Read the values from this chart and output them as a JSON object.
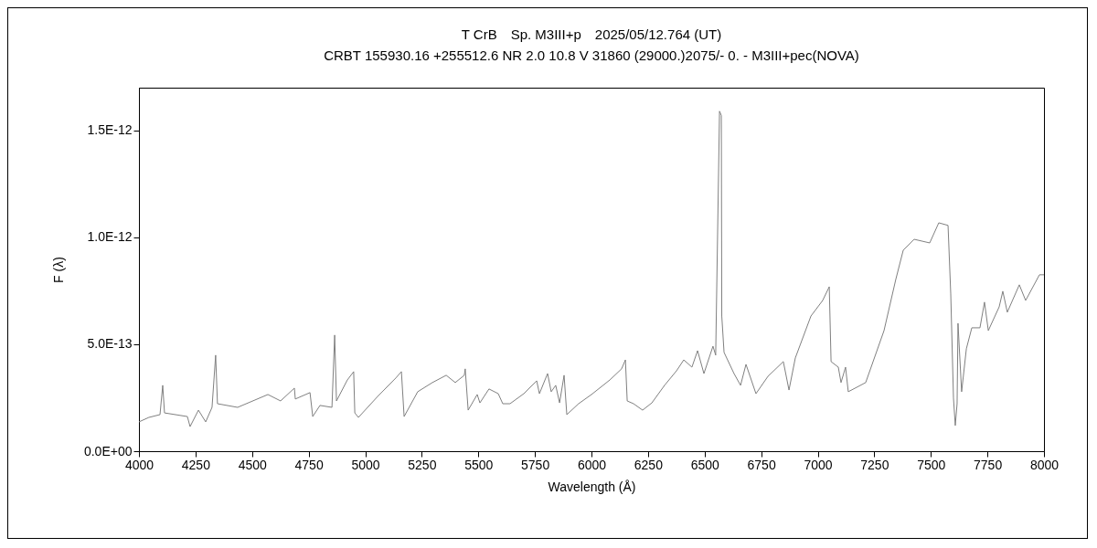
{
  "chart_data": {
    "type": "line",
    "title": "T CrB　Sp. M3III+p　2025/05/12.764 (UT)",
    "subtitle": "CRBT 155930.16 +255512.6 NR 2.0 10.8 V 31860 (29000.)2075/-  0. - M3III+pec(NOVA)",
    "xlabel": "Wavelength (Å)",
    "ylabel": "F (λ)",
    "x": [
      4000,
      4044,
      4093,
      4105,
      4113,
      4214,
      4226,
      4263,
      4295,
      4323,
      4339,
      4347,
      4436,
      4570,
      4626,
      4687,
      4691,
      4756,
      4768,
      4800,
      4853,
      4865,
      4873,
      4921,
      4949,
      4954,
      4970,
      5055,
      5135,
      5160,
      5172,
      5232,
      5297,
      5358,
      5398,
      5438,
      5442,
      5455,
      5495,
      5507,
      5547,
      5588,
      5608,
      5640,
      5701,
      5758,
      5770,
      5806,
      5822,
      5842,
      5859,
      5879,
      5891,
      5943,
      6000,
      6081,
      6133,
      6150,
      6158,
      6186,
      6226,
      6267,
      6323,
      6376,
      6408,
      6444,
      6469,
      6497,
      6537,
      6549,
      6566,
      6574,
      6576,
      6586,
      6630,
      6659,
      6683,
      6727,
      6780,
      6848,
      6873,
      6901,
      6970,
      7022,
      7051,
      7059,
      7091,
      7103,
      7123,
      7135,
      7212,
      7293,
      7345,
      7378,
      7426,
      7495,
      7535,
      7576,
      7588,
      7600,
      7608,
      7616,
      7620,
      7636,
      7657,
      7681,
      7717,
      7737,
      7754,
      7802,
      7818,
      7838,
      7891,
      7919,
      7980,
      8000
    ],
    "series": [
      {
        "color": "#808080",
        "values": [
          1.37e-13,
          1.58e-13,
          1.71e-13,
          3.08e-13,
          1.79e-13,
          1.62e-13,
          1.15e-13,
          1.92e-13,
          1.37e-13,
          2.05e-13,
          4.49e-13,
          2.22e-13,
          2.05e-13,
          2.65e-13,
          2.35e-13,
          2.95e-13,
          2.44e-13,
          2.74e-13,
          1.62e-13,
          2.14e-13,
          2.05e-13,
          5.43e-13,
          2.35e-13,
          3.33e-13,
          3.72e-13,
          1.79e-13,
          1.58e-13,
          2.56e-13,
          3.42e-13,
          3.72e-13,
          1.62e-13,
          2.78e-13,
          3.21e-13,
          3.55e-13,
          3.21e-13,
          3.55e-13,
          3.85e-13,
          1.92e-13,
          2.65e-13,
          2.26e-13,
          2.91e-13,
          2.69e-13,
          2.22e-13,
          2.22e-13,
          2.69e-13,
          3.29e-13,
          2.69e-13,
          3.63e-13,
          2.78e-13,
          3.08e-13,
          2.26e-13,
          3.55e-13,
          1.71e-13,
          2.22e-13,
          2.65e-13,
          3.33e-13,
          3.85e-13,
          4.27e-13,
          2.35e-13,
          2.22e-13,
          1.92e-13,
          2.26e-13,
          3.08e-13,
          3.76e-13,
          4.27e-13,
          3.93e-13,
          4.7e-13,
          3.63e-13,
          4.91e-13,
          4.49e-13,
          1.59e-12,
          1.57e-12,
          6.32e-13,
          4.62e-13,
          3.63e-13,
          3.08e-13,
          4.06e-13,
          2.69e-13,
          3.5e-13,
          4.19e-13,
          2.86e-13,
          4.36e-13,
          6.32e-13,
          7.05e-13,
          7.69e-13,
          4.19e-13,
          3.93e-13,
          3.21e-13,
          3.93e-13,
          2.78e-13,
          3.21e-13,
          5.64e-13,
          8.03e-13,
          9.4e-13,
          9.91e-13,
          9.74e-13,
          1.068e-12,
          1.056e-12,
          7.35e-13,
          2.48e-13,
          1.2e-13,
          2.22e-13,
          5.98e-13,
          2.78e-13,
          4.79e-13,
          5.77e-13,
          5.77e-13,
          6.97e-13,
          5.64e-13,
          6.75e-13,
          7.48e-13,
          6.5e-13,
          7.78e-13,
          7.05e-13,
          8.25e-13,
          8.25e-13
        ]
      }
    ],
    "xlim": [
      4000,
      8000
    ],
    "xticks": [
      4000,
      4250,
      4500,
      4750,
      5000,
      5250,
      5500,
      5750,
      6000,
      6250,
      6500,
      6750,
      7000,
      7250,
      7500,
      7750,
      8000
    ],
    "ylim": [
      0,
      1.7e-12
    ],
    "yticks": [
      {
        "value": 0,
        "label": "0.0E+00"
      },
      {
        "value": 5e-13,
        "label": "5.0E-13"
      },
      {
        "value": 1e-12,
        "label": "1.0E-12"
      },
      {
        "value": 1.5e-12,
        "label": "1.5E-12"
      }
    ],
    "grid": false,
    "marker": "none",
    "line_style": "solid"
  }
}
